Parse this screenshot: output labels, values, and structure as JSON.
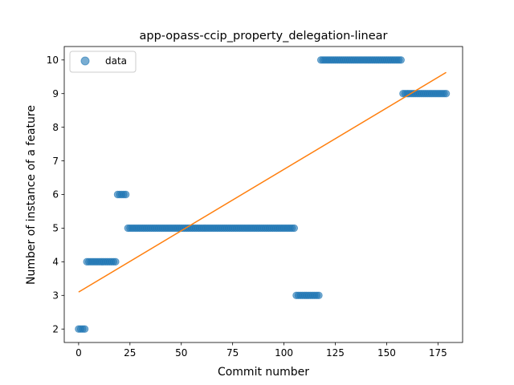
{
  "chart_data": {
    "type": "scatter",
    "title": "app-opass-ccip_property_delegation-linear",
    "xlabel": "Commit number",
    "ylabel": "Number of instance of a feature",
    "xlim": [
      -7,
      187
    ],
    "ylim": [
      1.6,
      10.4
    ],
    "x_ticks": [
      0,
      25,
      50,
      75,
      100,
      125,
      150,
      175
    ],
    "y_ticks": [
      2,
      3,
      4,
      5,
      6,
      7,
      8,
      9,
      10
    ],
    "grid": false,
    "legend": {
      "placement": "top-left",
      "entries": [
        "data"
      ]
    },
    "colors": {
      "data": "#1f77b4",
      "fit": "#ff7f0e"
    },
    "series": [
      {
        "name": "data",
        "kind": "points",
        "segments": [
          {
            "x_start": 0,
            "x_end": 3,
            "y": 2
          },
          {
            "x_start": 4,
            "x_end": 18,
            "y": 4
          },
          {
            "x_start": 19,
            "x_end": 23,
            "y": 6
          },
          {
            "x_start": 24,
            "x_end": 105,
            "y": 5
          },
          {
            "x_start": 106,
            "x_end": 117,
            "y": 3
          },
          {
            "x_start": 118,
            "x_end": 157,
            "y": 10
          },
          {
            "x_start": 158,
            "x_end": 179,
            "y": 9
          }
        ]
      },
      {
        "kind": "line",
        "x": [
          0,
          179
        ],
        "y": [
          3.1,
          9.63
        ]
      }
    ]
  }
}
